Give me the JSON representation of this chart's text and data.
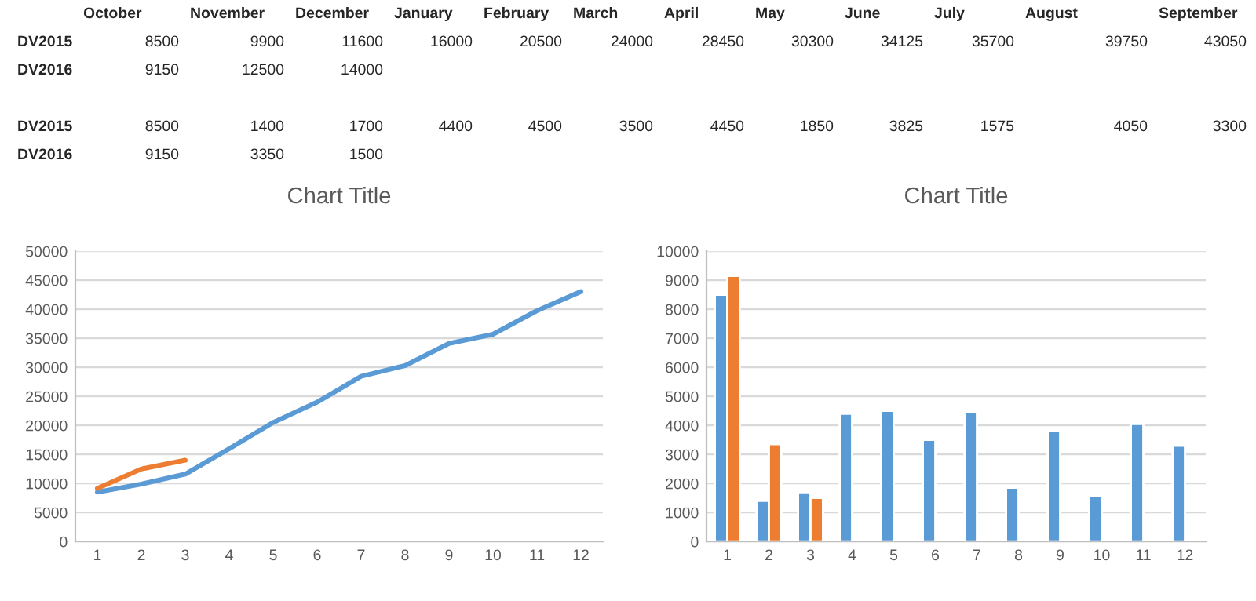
{
  "chart_data": [
    {
      "type": "other",
      "annotations": [
        "October",
        "November",
        "December",
        "January",
        "February",
        "March",
        "April",
        "May",
        "June",
        "July",
        "August",
        "September",
        "DV2015",
        "8500",
        "9900",
        "11600",
        "16000",
        "20500",
        "24000",
        "28450",
        "30300",
        "34125",
        "35700",
        "39750",
        "43050",
        "DV2016",
        "9150",
        "12500",
        "14000",
        "DV2015",
        "8500",
        "1400",
        "1700",
        "4400",
        "4500",
        "3500",
        "4450",
        "1850",
        "3825",
        "1575",
        "4050",
        "3300",
        "DV2016",
        "9150",
        "3350",
        "1500"
      ]
    },
    {
      "type": "line",
      "title": "Chart Title",
      "categories": [
        "1",
        "2",
        "3",
        "4",
        "5",
        "6",
        "7",
        "8",
        "9",
        "10",
        "11",
        "12"
      ],
      "series": [
        {
          "color": "#5b9bd5",
          "values": [
            8500,
            9900,
            11600,
            16000,
            20500,
            24000,
            28450,
            30300,
            34125,
            35700,
            39750,
            43050
          ]
        },
        {
          "color": "#ed7d31",
          "values": [
            9150,
            12500,
            14000,
            null,
            null,
            null,
            null,
            null,
            null,
            null,
            null,
            null
          ]
        }
      ],
      "ylim": [
        0,
        50000
      ],
      "yticks": [
        0,
        5000,
        10000,
        15000,
        20000,
        25000,
        30000,
        35000,
        40000,
        45000,
        50000
      ],
      "grid": "y"
    },
    {
      "type": "bar",
      "title": "Chart Title",
      "categories": [
        "1",
        "2",
        "3",
        "4",
        "5",
        "6",
        "7",
        "8",
        "9",
        "10",
        "11",
        "12"
      ],
      "series": [
        {
          "color": "#5b9bd5",
          "values": [
            8500,
            1400,
            1700,
            4400,
            4500,
            3500,
            4450,
            1850,
            3825,
            1575,
            4050,
            3300
          ]
        },
        {
          "color": "#ed7d31",
          "values": [
            9150,
            3350,
            1500,
            null,
            null,
            null,
            null,
            null,
            null,
            null,
            null,
            null
          ]
        }
      ],
      "ylim": [
        0,
        10000
      ],
      "yticks": [
        0,
        1000,
        2000,
        3000,
        4000,
        5000,
        6000,
        7000,
        8000,
        9000,
        10000
      ],
      "grid": "y"
    }
  ]
}
